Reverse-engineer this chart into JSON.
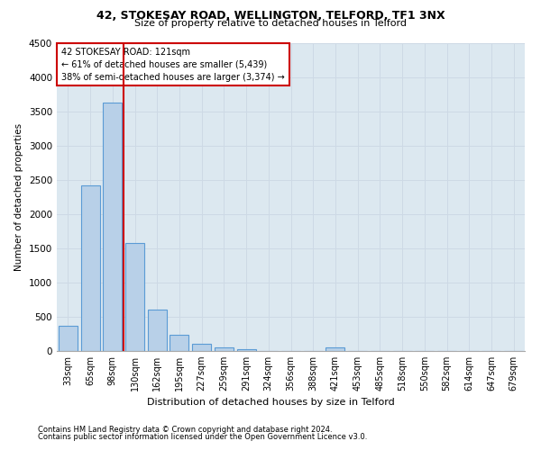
{
  "title1": "42, STOKESAY ROAD, WELLINGTON, TELFORD, TF1 3NX",
  "title2": "Size of property relative to detached houses in Telford",
  "xlabel": "Distribution of detached houses by size in Telford",
  "ylabel": "Number of detached properties",
  "footer1": "Contains HM Land Registry data © Crown copyright and database right 2024.",
  "footer2": "Contains public sector information licensed under the Open Government Licence v3.0.",
  "categories": [
    "33sqm",
    "65sqm",
    "98sqm",
    "130sqm",
    "162sqm",
    "195sqm",
    "227sqm",
    "259sqm",
    "291sqm",
    "324sqm",
    "356sqm",
    "388sqm",
    "421sqm",
    "453sqm",
    "485sqm",
    "518sqm",
    "550sqm",
    "582sqm",
    "614sqm",
    "647sqm",
    "679sqm"
  ],
  "values": [
    370,
    2420,
    3620,
    1580,
    600,
    240,
    110,
    55,
    30,
    0,
    0,
    0,
    50,
    0,
    0,
    0,
    0,
    0,
    0,
    0,
    0
  ],
  "bar_color": "#b8d0e8",
  "bar_edge_color": "#5b9bd5",
  "bar_edge_width": 0.8,
  "ylim": [
    0,
    4500
  ],
  "yticks": [
    0,
    500,
    1000,
    1500,
    2000,
    2500,
    3000,
    3500,
    4000,
    4500
  ],
  "annotation_title": "42 STOKESAY ROAD: 121sqm",
  "annotation_line1": "← 61% of detached houses are smaller (5,439)",
  "annotation_line2": "38% of semi-detached houses are larger (3,374) →",
  "annotation_box_color": "#ffffff",
  "annotation_box_edge_color": "#cc0000",
  "vline_color": "#cc0000",
  "vline_x_index": 2.5,
  "grid_color": "#cdd9e5",
  "plot_bg_color": "#dce8f0"
}
